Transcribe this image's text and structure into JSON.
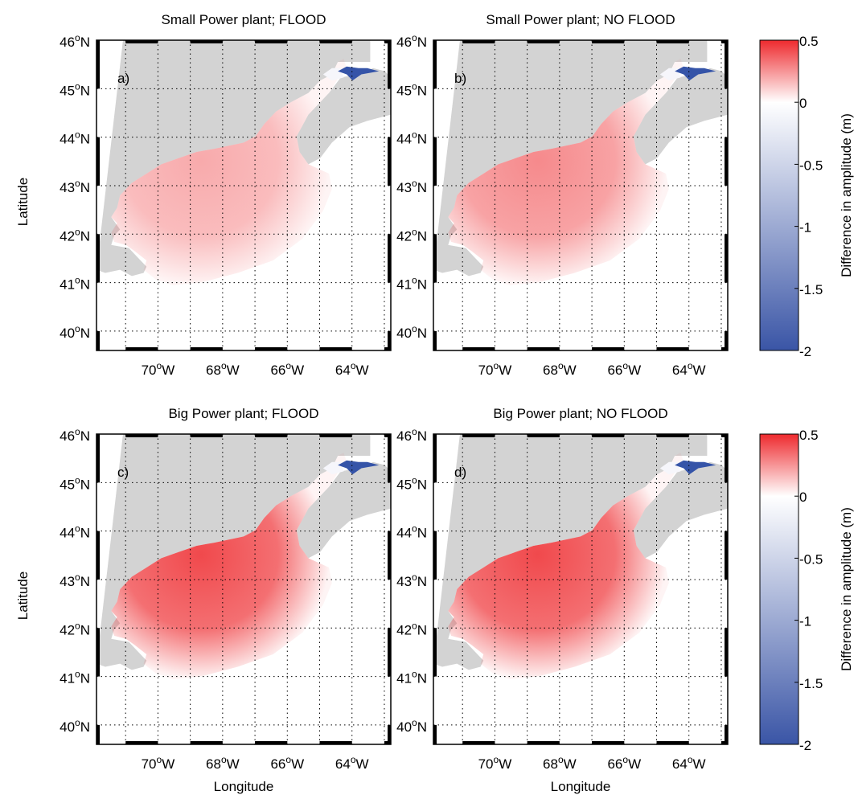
{
  "figure": {
    "y_axis_label": "Latitude",
    "x_axis_label": "Longitude",
    "lat_ticks": [
      {
        "value": 46,
        "deg": "46",
        "hemi": "N"
      },
      {
        "value": 45,
        "deg": "45",
        "hemi": "N"
      },
      {
        "value": 44,
        "deg": "44",
        "hemi": "N"
      },
      {
        "value": 43,
        "deg": "43",
        "hemi": "N"
      },
      {
        "value": 42,
        "deg": "42",
        "hemi": "N"
      },
      {
        "value": 41,
        "deg": "41",
        "hemi": "N"
      },
      {
        "value": 40,
        "deg": "40",
        "hemi": "N"
      }
    ],
    "lon_ticks": [
      {
        "value": -70,
        "deg": "70",
        "hemi": "W"
      },
      {
        "value": -68,
        "deg": "68",
        "hemi": "W"
      },
      {
        "value": -66,
        "deg": "66",
        "hemi": "W"
      },
      {
        "value": -64,
        "deg": "64",
        "hemi": "W"
      }
    ],
    "lat_range": [
      39.6,
      46.0
    ],
    "lon_range": [
      -71.9,
      -62.8
    ],
    "panels": [
      {
        "id": "a",
        "title": "Small Power plant; FLOOD",
        "letter": "a)",
        "intensity": 0.42,
        "show_ylabel": true,
        "show_xlabel": false
      },
      {
        "id": "b",
        "title": "Small Power plant; NO FLOOD",
        "letter": "b)",
        "intensity": 0.58,
        "show_ylabel": false,
        "show_xlabel": false
      },
      {
        "id": "c",
        "title": "Big Power plant; FLOOD",
        "letter": "c)",
        "intensity": 0.9,
        "show_ylabel": true,
        "show_xlabel": true
      },
      {
        "id": "d",
        "title": "Big Power plant; NO FLOOD",
        "letter": "d)",
        "intensity": 0.9,
        "show_ylabel": false,
        "show_xlabel": true
      }
    ],
    "colorbar": {
      "label": "Difference in amplitude (m)",
      "range": [
        -2,
        0.5
      ],
      "ticks": [
        "0.5",
        "0",
        "-0.5",
        "-1",
        "-1.5",
        "-2"
      ],
      "color_max": "#ee2a2e",
      "color_zero": "#ffffff",
      "color_min": "#3a55a6"
    },
    "colors": {
      "land": "#d3d3d3",
      "inflow_blue": "#3554a8"
    }
  }
}
